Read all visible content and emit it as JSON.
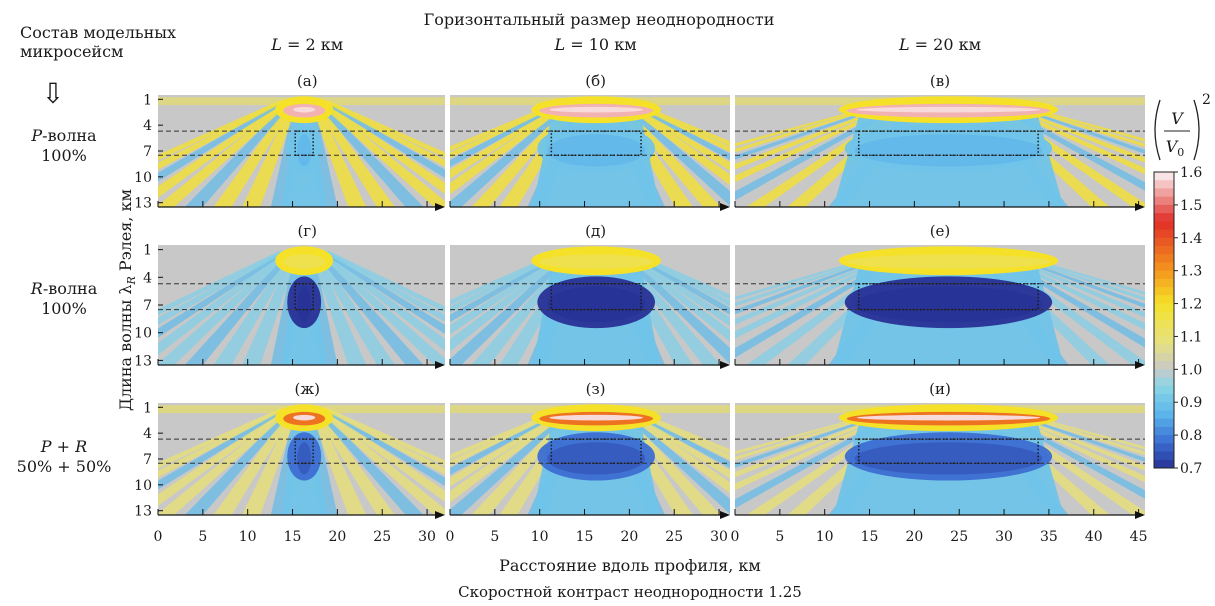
{
  "header": {
    "left_title_line1": "Состав модельных",
    "left_title_line2": "микросейсм",
    "arrow_glyph": "⇩",
    "top_title": "Горизонтальный размер неоднородности",
    "bottom_title": "Скоростной контраст неоднородности 1.25"
  },
  "colors": {
    "background_gray": "#c8c8c8",
    "cyan": "#7ed2e8",
    "yellow": "#f5e33a",
    "red": "#e0322d",
    "blue_dark": "#3a4fb0",
    "dotted_box": "#1a1a1a",
    "dashed_line": "#333333"
  },
  "chart_data": {
    "type": "heatmap",
    "columns": [
      {
        "heading": "L = 2 км",
        "heading_italic": "L",
        "heading_rest": " = 2 км",
        "inhom_km": 2,
        "xmax": 32,
        "ticks": [
          0,
          5,
          10,
          15,
          20,
          25,
          30
        ]
      },
      {
        "heading": "L = 10 км",
        "heading_italic": "L",
        "heading_rest": " = 10 км",
        "inhom_km": 10,
        "xmax": 32,
        "ticks": [
          0,
          5,
          10,
          15,
          20,
          25,
          30
        ]
      },
      {
        "heading": "L = 20 км",
        "heading_italic": "L",
        "heading_rest": " = 20 км",
        "inhom_km": 20,
        "xmax": 47,
        "ticks": [
          0,
          5,
          10,
          15,
          20,
          25,
          30,
          35,
          40,
          45
        ]
      }
    ],
    "rows": [
      {
        "label_italic": "P",
        "label_rest": "-волна",
        "label_line2": "100%",
        "panels": [
          "(а)",
          "(б)",
          "(в)"
        ],
        "near_max": 1.6,
        "body_min": 0.9,
        "rays": 1.2
      },
      {
        "label_italic": "R",
        "label_rest": "-волна",
        "label_line2": "100%",
        "panels": [
          "(г)",
          "(д)",
          "(е)"
        ],
        "near_max": 1.2,
        "body_min": 0.7,
        "rays": 1.0
      },
      {
        "label_italic": "P + R",
        "label_rest": "",
        "label_line2": "50% + 50%",
        "panels": [
          "(ж)",
          "(з)",
          "(и)"
        ],
        "near_max": 1.4,
        "body_min": 0.78,
        "rays": 1.1
      }
    ],
    "y_ticks": [
      1,
      4,
      7,
      10,
      13
    ],
    "ylim": [
      0.5,
      13.5
    ],
    "ylabel": "Длина волны λR Рэлея, км",
    "ylabel_main": "Длина волны λ",
    "ylabel_sub": "R",
    "ylabel_end": " Рэлея, км",
    "xlabel": "Расстояние вдоль профиля, км",
    "inhomogeneity_depth_km": [
      4.7,
      7.5
    ],
    "colorbar": {
      "label": "(V/V0)^2",
      "ticks": [
        1.6,
        1.5,
        1.4,
        1.3,
        1.2,
        1.1,
        1.0,
        0.9,
        0.8,
        0.7
      ],
      "min": 0.7,
      "max": 1.6
    }
  }
}
